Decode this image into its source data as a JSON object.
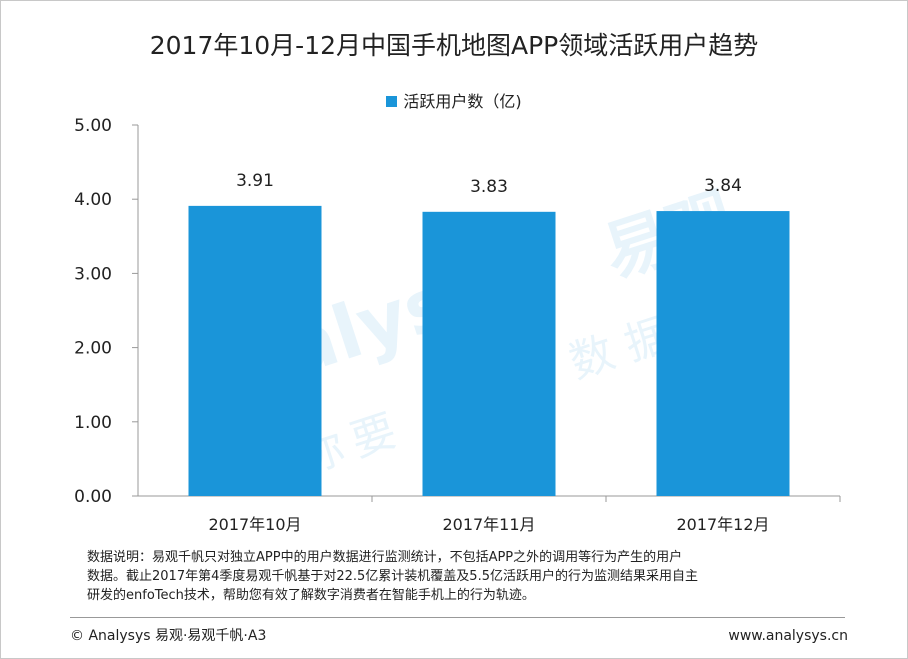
{
  "chart_data": {
    "type": "bar",
    "title": "2017年10月-12月中国手机地图APP领域活跃用户趋势",
    "categories": [
      "2017年10月",
      "2017年11月",
      "2017年12月"
    ],
    "series": [
      {
        "name": "活跃用户数（亿)",
        "values": [
          3.91,
          3.83,
          3.84
        ],
        "color": "#1a95d9"
      }
    ],
    "data_labels": [
      "3.91",
      "3.83",
      "3.84"
    ],
    "yticks": [
      "0.00",
      "1.00",
      "2.00",
      "3.00",
      "4.00",
      "5.00"
    ],
    "ylim": [
      0,
      5
    ],
    "xlabel": "",
    "ylabel": "",
    "grid": false,
    "legend_position": "top"
  },
  "watermark": {
    "brand": "易观",
    "brand_en": "Analysys",
    "slogan_left": "你要",
    "slogan_right": "数据分析"
  },
  "note": {
    "lines": [
      "数据说明：易观千帆只对独立APP中的用户数据进行监测统计，不包括APP之外的调用等行为产生的用户",
      "数据。截止2017年第4季度易观千帆基于对22.5亿累计装机覆盖及5.5亿活跃用户的行为监测结果采用自主",
      "研发的enfoTech技术，帮助您有效了解数字消费者在智能手机上的行为轨迹。"
    ]
  },
  "footer": {
    "copyright": "© Analysys 易观·易观千帆·A3",
    "website": "www.analysys.cn"
  }
}
